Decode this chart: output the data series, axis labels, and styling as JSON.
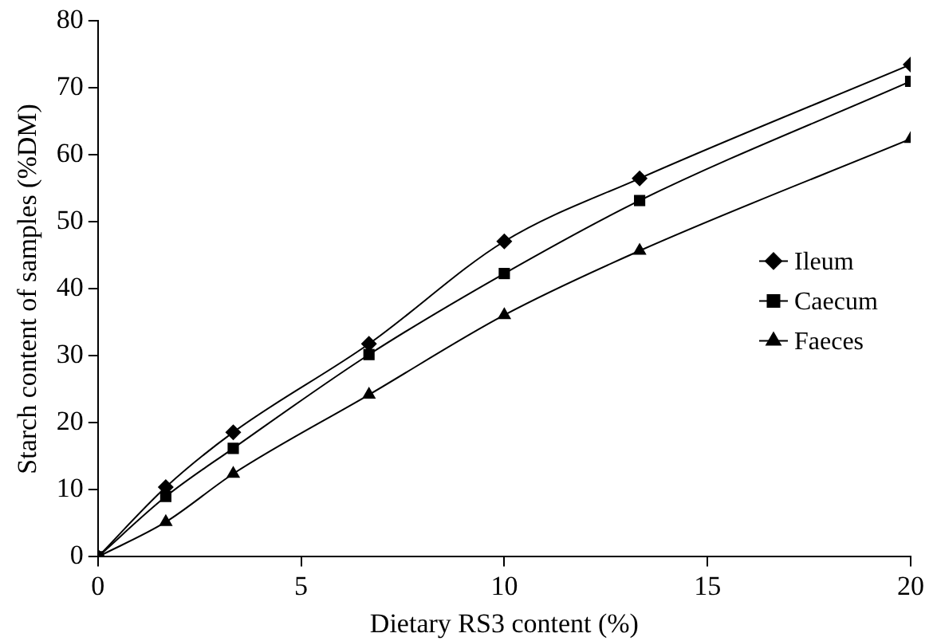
{
  "chart_data": {
    "type": "line",
    "xlabel": "Dietary RS3 content (%)",
    "ylabel": "Starch content of samples (%DM)",
    "xlim": [
      0,
      20
    ],
    "xticks": [
      0,
      5,
      10,
      15,
      20
    ],
    "ylim": [
      0,
      80
    ],
    "yticks": [
      0,
      10,
      20,
      30,
      40,
      50,
      60,
      70,
      80
    ],
    "grid": false,
    "legend": "right",
    "x": [
      0,
      1.67,
      3.33,
      6.67,
      10,
      13.33,
      20
    ],
    "series": [
      {
        "name": "Ileum",
        "color": "#000000",
        "marker": "diamond",
        "values": [
          0,
          10.4,
          18.6,
          31.8,
          47.1,
          56.5,
          73.5
        ]
      },
      {
        "name": "Caecum",
        "color": "#000000",
        "marker": "square",
        "values": [
          0,
          9.0,
          16.2,
          30.2,
          42.3,
          53.2,
          71.0
        ]
      },
      {
        "name": "Faeces",
        "color": "#000000",
        "marker": "triangle",
        "values": [
          0,
          5.2,
          12.4,
          24.2,
          36.1,
          45.7,
          62.4
        ]
      }
    ]
  }
}
